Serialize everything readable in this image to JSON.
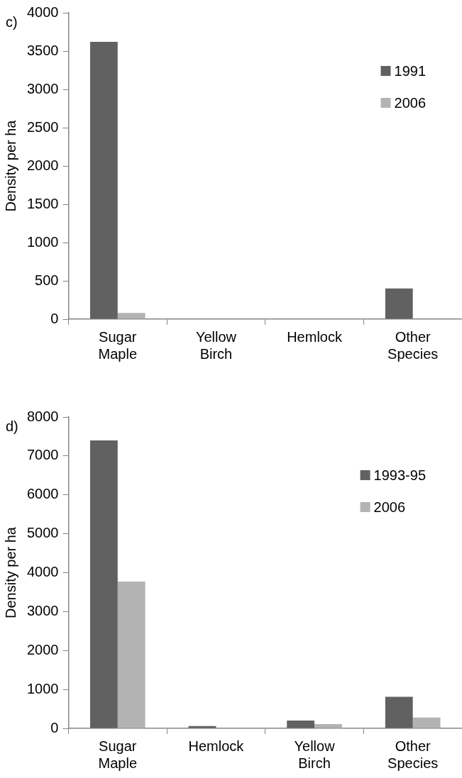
{
  "chart_data": [
    {
      "type": "bar",
      "annotations": [
        "c)"
      ],
      "ylabel": "Density per ha",
      "categories": [
        "Sugar Maple",
        "Yellow Birch",
        "Hemlock",
        "Other Species"
      ],
      "series": [
        {
          "name": "1991",
          "color": "#616161",
          "values": [
            3620,
            0,
            0,
            400
          ]
        },
        {
          "name": "2006",
          "color": "#b3b3b3",
          "values": [
            80,
            0,
            0,
            0
          ]
        }
      ],
      "ylim": [
        0,
        4000
      ],
      "yticks": [
        0,
        500,
        1000,
        1500,
        2000,
        2500,
        3000,
        3500,
        4000
      ],
      "grid": false,
      "legend": "top right"
    },
    {
      "type": "bar",
      "annotations": [
        "d)"
      ],
      "ylabel": "Density per ha",
      "categories": [
        "Sugar Maple",
        "Hemlock",
        "Yellow Birch",
        "Other Species"
      ],
      "series": [
        {
          "name": "1993-95",
          "color": "#616161",
          "values": [
            7400,
            60,
            200,
            810
          ]
        },
        {
          "name": "2006",
          "color": "#b3b3b3",
          "values": [
            3770,
            10,
            110,
            280
          ]
        }
      ],
      "ylim": [
        0,
        8000
      ],
      "yticks": [
        0,
        1000,
        2000,
        3000,
        4000,
        5000,
        6000,
        7000,
        8000
      ],
      "grid": false,
      "legend": "top right"
    }
  ]
}
